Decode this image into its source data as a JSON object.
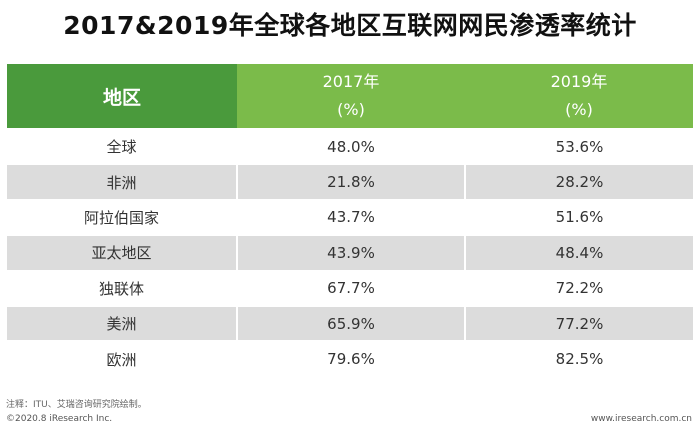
{
  "chart_data": {
    "type": "table",
    "title": "2017&2019年全球各地区互联网网民渗透率统计",
    "columns": [
      {
        "label": "地区"
      },
      {
        "year": "2017年",
        "unit": "(%)"
      },
      {
        "year": "2019年",
        "unit": "(%)"
      }
    ],
    "rows": [
      {
        "region": "全球",
        "v2017": "48.0%",
        "v2019": "53.6%"
      },
      {
        "region": "非洲",
        "v2017": "21.8%",
        "v2019": "28.2%"
      },
      {
        "region": "阿拉伯国家",
        "v2017": "43.7%",
        "v2019": "51.6%"
      },
      {
        "region": "亚太地区",
        "v2017": "43.9%",
        "v2019": "48.4%"
      },
      {
        "region": "独联体",
        "v2017": "67.7%",
        "v2019": "72.2%"
      },
      {
        "region": "美洲",
        "v2017": "65.9%",
        "v2019": "77.2%"
      },
      {
        "region": "欧洲",
        "v2017": "79.6%",
        "v2019": "82.5%"
      }
    ],
    "note": "注释：ITU、艾瑞咨询研究院绘制。"
  },
  "footer": {
    "copyright": "©2020.8 iResearch Inc.",
    "website": "www.iresearch.com.cn"
  },
  "colors": {
    "header_dark": "#4a9a3c",
    "header_light": "#7bbb4a",
    "row_alt": "#dcdcdc"
  }
}
